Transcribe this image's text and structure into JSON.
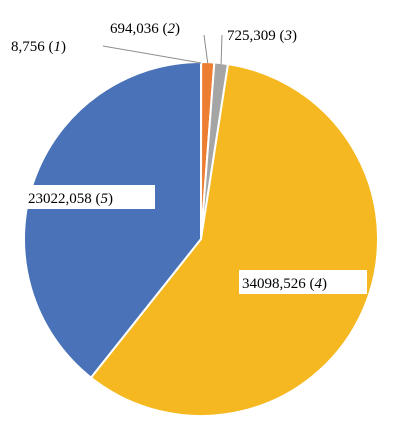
{
  "chart_data": {
    "type": "pie",
    "start_angle_deg": 0,
    "direction": "clockwise",
    "slices": [
      {
        "value": 8756,
        "label": "8,756",
        "index": "1",
        "color": "#4472c4"
      },
      {
        "value": 694036,
        "label": "694,036",
        "index": "2",
        "color": "#ed7d31"
      },
      {
        "value": 725309,
        "label": "725,309",
        "index": "3",
        "color": "#a5a5a5"
      },
      {
        "value": 34098526,
        "label": "34098,526",
        "index": "4",
        "color": "#f5b820"
      },
      {
        "value": 23022058,
        "label": "23022,058",
        "index": "5",
        "color": "#4a72b8"
      }
    ]
  }
}
